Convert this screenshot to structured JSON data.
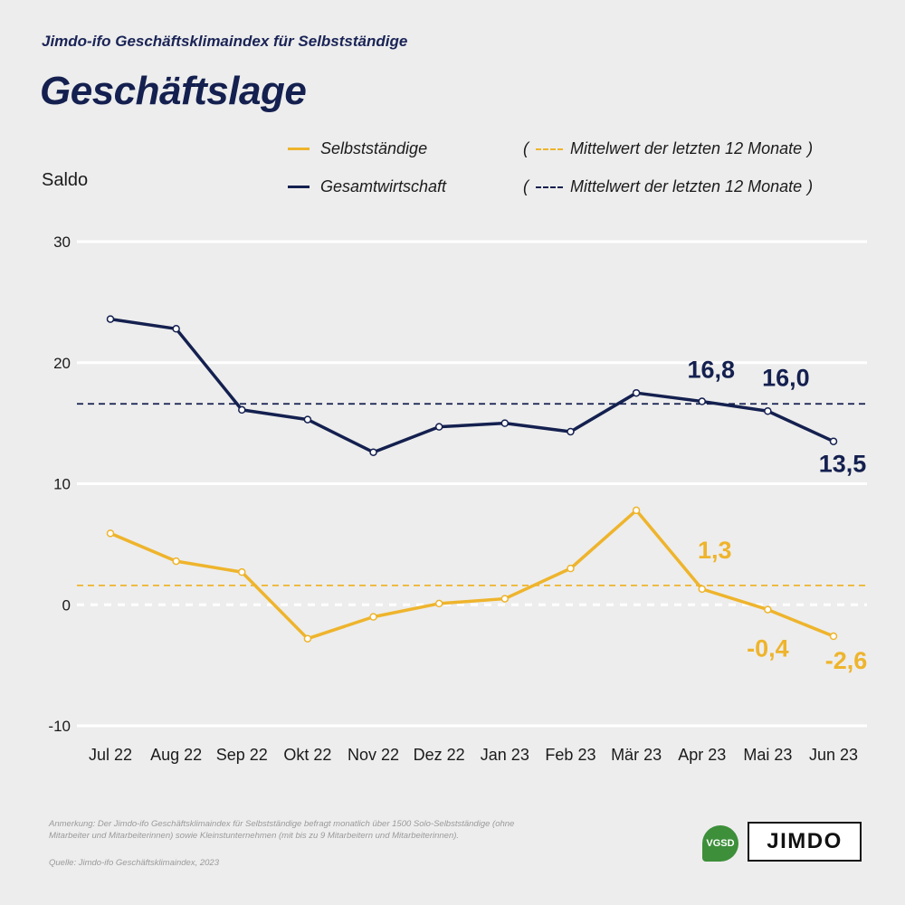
{
  "header": {
    "subtitle": "Jimdo-ifo Geschäftsklimaindex für Selbstständige",
    "title": "Geschäftslage"
  },
  "legend": {
    "self_label": "Selbstständige",
    "total_label": "Gesamtwirtschaft",
    "self_avg_label": "Mittelwert der letzten 12 Monate",
    "total_avg_label": "Mittelwert der letzten 12 Monate",
    "open_paren": "(",
    "close_paren": ")"
  },
  "footer": {
    "note": "Anmerkung: Der Jimdo-ifo Geschäftsklimaindex für Selbstständige befragt monatlich über 1500 Solo-Selbstständige (ohne Mitarbeiter und Mitarbeiterinnen) sowie Kleinstunternehmen (mit bis zu 9 Mitarbeitern und Mitarbeiterinnen).",
    "source": "Quelle: Jimdo-ifo Geschäftsklimaindex, 2023"
  },
  "logos": {
    "vgsd": "VGSD",
    "jimdo": "JIMDO"
  },
  "colors": {
    "self": "#eeb42c",
    "total": "#14204f",
    "grid": "#ffffff",
    "background": "#ededed"
  },
  "chart_data": {
    "type": "line",
    "ylabel": "Saldo",
    "ylim": [
      -10,
      30
    ],
    "yticks": [
      -10,
      0,
      10,
      20,
      30
    ],
    "grid": true,
    "legend_position": "top",
    "categories": [
      "Jul 22",
      "Aug 22",
      "Sep 22",
      "Okt 22",
      "Nov 22",
      "Dez 22",
      "Jan 23",
      "Feb 23",
      "Mär 23",
      "Apr 23",
      "Mai 23",
      "Jun 23"
    ],
    "series": [
      {
        "name": "Selbstständige",
        "color": "#eeb42c",
        "values": [
          5.9,
          3.6,
          2.7,
          -2.8,
          -1.0,
          0.1,
          0.5,
          3.0,
          7.8,
          1.3,
          -0.4,
          -2.6
        ],
        "labeled_points": [
          {
            "index": 9,
            "text": "1,3"
          },
          {
            "index": 10,
            "text": "-0,4"
          },
          {
            "index": 11,
            "text": "-2,6"
          }
        ],
        "average": 1.6
      },
      {
        "name": "Gesamtwirtschaft",
        "color": "#14204f",
        "values": [
          23.6,
          22.8,
          16.1,
          15.3,
          12.6,
          14.7,
          15.0,
          14.3,
          17.5,
          16.8,
          16.0,
          13.5
        ],
        "labeled_points": [
          {
            "index": 9,
            "text": "16,8"
          },
          {
            "index": 10,
            "text": "16,0"
          },
          {
            "index": 11,
            "text": "13,5"
          }
        ],
        "average": 16.6
      }
    ]
  }
}
